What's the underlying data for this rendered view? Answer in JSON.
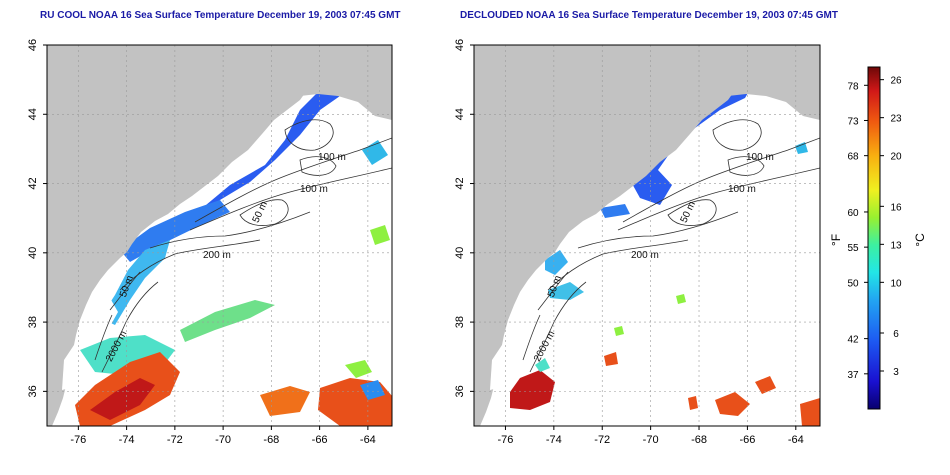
{
  "panels": [
    {
      "id": "left",
      "title": "RU COOL NOAA 16 Sea Surface Temperature December 19, 2003 07:45 GMT",
      "contour_labels": [
        "100 m",
        "100 m",
        "50 m",
        "200 m",
        "50 m",
        "2000 m"
      ]
    },
    {
      "id": "right",
      "title": "DECLOUDED NOAA 16 Sea Surface Temperature December 19, 2003 07:45 GMT",
      "contour_labels": [
        "100 m",
        "100 m",
        "50 m",
        "200 m",
        "50 m",
        "2000 m"
      ]
    }
  ],
  "axes": {
    "x_ticks": [
      "-76",
      "-74",
      "-72",
      "-70",
      "-68",
      "-66",
      "-64"
    ],
    "y_ticks": [
      "46",
      "44",
      "42",
      "40",
      "38",
      "36"
    ],
    "x_range": [
      -77.3,
      -63.0
    ],
    "y_range": [
      35.0,
      46.0
    ]
  },
  "colorbar": {
    "unit_f": "°F",
    "unit_c": "°C",
    "f_ticks": [
      "78",
      "73",
      "68",
      "60",
      "55",
      "50",
      "42",
      "37"
    ],
    "c_ticks": [
      "26",
      "23",
      "20",
      "16",
      "13",
      "10",
      "6",
      "3"
    ],
    "c_range": [
      0,
      27
    ]
  },
  "colors": {
    "land": "#c2c2c2",
    "title": "#1a1aa6",
    "grid": "#9a9a9a",
    "contour": "#333333"
  }
}
